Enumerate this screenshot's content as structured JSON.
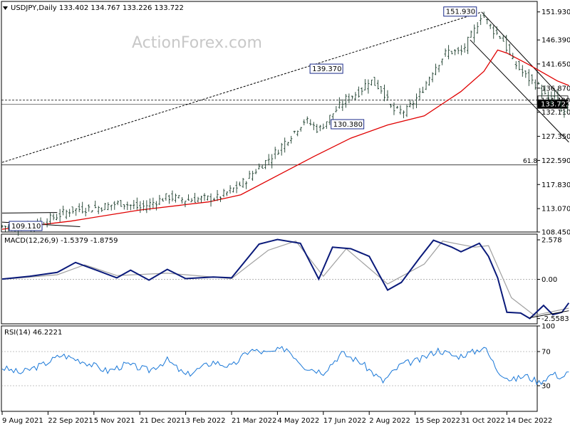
{
  "chart_data": {
    "type": "ohlc",
    "symbol_line": "USDJPY,Daily  133.402 134.767 133.226 133.722",
    "watermark": "ActionForex.com",
    "price_axis_labels": [
      "151.930",
      "146.390",
      "141.650",
      "136.870",
      "134.490",
      "133.722",
      "132.110",
      "127.350",
      "122.590",
      "117.830",
      "113.070",
      "108.450"
    ],
    "price_axis_values": [
      151.93,
      146.39,
      141.65,
      136.87,
      134.49,
      133.722,
      132.11,
      127.35,
      122.59,
      117.83,
      113.07,
      108.45
    ],
    "date_axis_labels": [
      "9 Aug 2021",
      "22 Sep 2021",
      "5 Nov 2021",
      "21 Dec 2021",
      "3 Feb 2022",
      "21 Mar 2022",
      "4 May 2022",
      "17 Jun 2022",
      "2 Aug 2022",
      "15 Sep 2022",
      "31 Oct 2022",
      "14 Dec 2022"
    ],
    "price_range": [
      108.45,
      154.0
    ],
    "current_price": 133.722,
    "horizontal_level": 134.49,
    "fib_level": {
      "label": "61.8",
      "value": 121.7
    },
    "callouts": [
      {
        "label": "151.930",
        "value": 151.93,
        "date_index": 10.4
      },
      {
        "label": "139.370",
        "value": 139.37,
        "date_index": 7.3
      },
      {
        "label": "130.380",
        "value": 130.38,
        "date_index": 8.1
      },
      {
        "label": "109.110",
        "value": 109.11,
        "date_index": 0.05
      }
    ],
    "price_path": [
      [
        0,
        109.6
      ],
      [
        0.5,
        109.4
      ],
      [
        0.9,
        110.5
      ],
      [
        1.5,
        112.8
      ],
      [
        2.1,
        113.3
      ],
      [
        2.6,
        114.2
      ],
      [
        3.0,
        113.2
      ],
      [
        3.6,
        115.4
      ],
      [
        4.0,
        114.8
      ],
      [
        4.7,
        115.2
      ],
      [
        5.2,
        117.8
      ],
      [
        5.6,
        121.3
      ],
      [
        5.9,
        123.6
      ],
      [
        6.3,
        127.6
      ],
      [
        6.6,
        130.6
      ],
      [
        6.9,
        128.6
      ],
      [
        7.2,
        131.8
      ],
      [
        7.5,
        134.8
      ],
      [
        7.8,
        136.2
      ],
      [
        8.0,
        138.6
      ],
      [
        8.3,
        136.4
      ],
      [
        8.5,
        132.4
      ],
      [
        8.8,
        132.3
      ],
      [
        9.1,
        135.6
      ],
      [
        9.4,
        140.6
      ],
      [
        9.7,
        144.2
      ],
      [
        10.0,
        143.9
      ],
      [
        10.3,
        148.4
      ],
      [
        10.45,
        151.6
      ],
      [
        10.7,
        148.3
      ],
      [
        10.9,
        146.7
      ],
      [
        11.1,
        142.5
      ],
      [
        11.4,
        139.3
      ],
      [
        11.7,
        137.1
      ],
      [
        11.9,
        134.4
      ],
      [
        12.05,
        136.1
      ],
      [
        12.2,
        131.6
      ],
      [
        12.35,
        133.7
      ]
    ],
    "sma_path": [
      [
        0,
        109.0
      ],
      [
        1.5,
        110.6
      ],
      [
        3.0,
        112.8
      ],
      [
        4.5,
        114.4
      ],
      [
        5.2,
        115.8
      ],
      [
        6.0,
        119.6
      ],
      [
        6.8,
        123.4
      ],
      [
        7.6,
        127.0
      ],
      [
        8.4,
        129.6
      ],
      [
        9.2,
        131.4
      ],
      [
        10.0,
        136.2
      ],
      [
        10.5,
        140.2
      ],
      [
        10.8,
        144.4
      ],
      [
        11.0,
        143.8
      ],
      [
        11.5,
        141.4
      ],
      [
        12.1,
        138.3
      ],
      [
        12.35,
        137.4
      ]
    ],
    "channel_upper": [
      [
        10.45,
        151.9
      ],
      [
        12.35,
        133.5
      ]
    ],
    "channel_lower": [
      [
        10.2,
        146.4
      ],
      [
        12.35,
        126.2
      ]
    ],
    "trend_dashed": [
      [
        0,
        122.2
      ],
      [
        10.45,
        151.9
      ]
    ],
    "sideways_lines": [
      {
        "from": [
          0,
          112.2
        ],
        "to": [
          1.2,
          112.3
        ]
      },
      {
        "from": [
          0,
          110.4
        ],
        "to": [
          1.7,
          109.5
        ]
      }
    ],
    "macd": {
      "label": "MACD(12,26,9) -1.5379 -1.8759",
      "axis_labels": [
        "2.578",
        "0.00",
        "-2.5583"
      ],
      "axis_values": [
        2.578,
        0.0,
        -2.5583
      ],
      "range": [
        -2.9,
        2.95
      ],
      "macd_path": [
        [
          0,
          0.02
        ],
        [
          0.6,
          0.2
        ],
        [
          1.2,
          0.45
        ],
        [
          1.6,
          1.1
        ],
        [
          2.1,
          0.55
        ],
        [
          2.5,
          0.1
        ],
        [
          2.8,
          0.6
        ],
        [
          3.2,
          -0.05
        ],
        [
          3.6,
          0.65
        ],
        [
          4.0,
          0.05
        ],
        [
          4.6,
          0.15
        ],
        [
          5.0,
          0.1
        ],
        [
          5.6,
          2.3
        ],
        [
          6.0,
          2.6
        ],
        [
          6.5,
          2.35
        ],
        [
          6.9,
          0.02
        ],
        [
          7.2,
          2.1
        ],
        [
          7.6,
          2.0
        ],
        [
          8.0,
          1.5
        ],
        [
          8.4,
          -0.7
        ],
        [
          8.7,
          -0.2
        ],
        [
          9.1,
          1.4
        ],
        [
          9.4,
          2.55
        ],
        [
          9.8,
          2.1
        ],
        [
          10.0,
          1.8
        ],
        [
          10.4,
          2.35
        ],
        [
          10.6,
          1.5
        ],
        [
          10.8,
          0.1
        ],
        [
          11.0,
          -2.15
        ],
        [
          11.3,
          -2.2
        ],
        [
          11.5,
          -2.55
        ],
        [
          11.8,
          -1.7
        ],
        [
          12.0,
          -2.3
        ],
        [
          12.2,
          -2.15
        ],
        [
          12.35,
          -1.54
        ]
      ],
      "signal_path": [
        [
          0,
          0.0
        ],
        [
          1.2,
          0.3
        ],
        [
          1.8,
          0.95
        ],
        [
          2.5,
          0.25
        ],
        [
          3.6,
          0.4
        ],
        [
          5.0,
          0.05
        ],
        [
          5.8,
          1.9
        ],
        [
          6.4,
          2.5
        ],
        [
          7.0,
          0.2
        ],
        [
          7.5,
          2.0
        ],
        [
          8.4,
          -0.3
        ],
        [
          9.2,
          1.0
        ],
        [
          9.6,
          2.5
        ],
        [
          10.3,
          2.1
        ],
        [
          10.6,
          2.2
        ],
        [
          11.1,
          -1.2
        ],
        [
          11.6,
          -2.35
        ],
        [
          12.35,
          -1.88
        ]
      ],
      "trendline": [
        [
          11.5,
          -2.5
        ],
        [
          12.35,
          -2.05
        ]
      ]
    },
    "rsi": {
      "label": "RSI(14) 46.2221",
      "axis_labels": [
        "100",
        "70",
        "30"
      ],
      "axis_values": [
        100,
        70,
        30
      ],
      "range": [
        0,
        100
      ],
      "rsi_path": [
        [
          0,
          51
        ],
        [
          0.4,
          45
        ],
        [
          0.9,
          55
        ],
        [
          1.3,
          66
        ],
        [
          1.8,
          58
        ],
        [
          2.3,
          47
        ],
        [
          2.7,
          55
        ],
        [
          3.2,
          48
        ],
        [
          3.6,
          60
        ],
        [
          4.0,
          42
        ],
        [
          4.6,
          58
        ],
        [
          5.0,
          52
        ],
        [
          5.4,
          72
        ],
        [
          5.8,
          68
        ],
        [
          6.2,
          74
        ],
        [
          6.6,
          52
        ],
        [
          7.0,
          46
        ],
        [
          7.4,
          68
        ],
        [
          7.8,
          58
        ],
        [
          8.3,
          35
        ],
        [
          8.7,
          55
        ],
        [
          9.1,
          60
        ],
        [
          9.5,
          72
        ],
        [
          9.9,
          64
        ],
        [
          10.3,
          70
        ],
        [
          10.5,
          76
        ],
        [
          10.8,
          48
        ],
        [
          11.1,
          36
        ],
        [
          11.4,
          42
        ],
        [
          11.7,
          34
        ],
        [
          12.0,
          44
        ],
        [
          12.2,
          40
        ],
        [
          12.35,
          46.2
        ]
      ]
    }
  }
}
